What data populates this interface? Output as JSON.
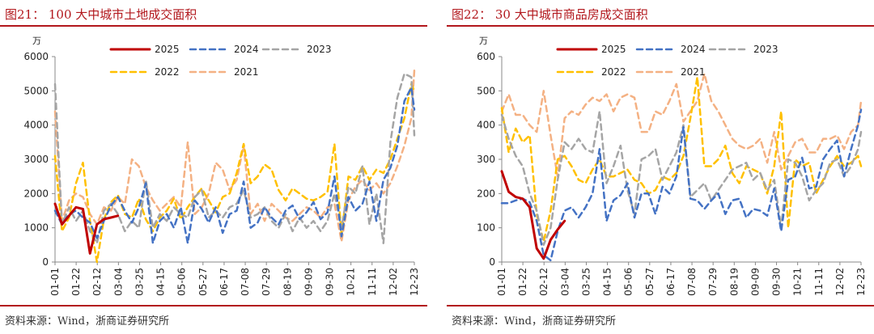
{
  "panels": [
    {
      "figure_title": "图21：  100 大中城市土地成交面积",
      "source": "资料来源：Wind，浙商证券研究所"
    },
    {
      "figure_title": "图22：  30 大中城市商品房成交面积",
      "source": "资料来源：Wind，浙商证券研究所"
    }
  ],
  "chart_data": [
    {
      "type": "line",
      "title": "",
      "ylabel": "万",
      "ylim": [
        0,
        6000
      ],
      "yticks": [
        0,
        1000,
        2000,
        3000,
        4000,
        5000,
        6000
      ],
      "x_tick_labels": [
        "01-01",
        "01-22",
        "02-12",
        "03-04",
        "03-25",
        "04-15",
        "05-06",
        "05-27",
        "06-17",
        "07-08",
        "07-29",
        "08-19",
        "09-09",
        "09-30",
        "10-21",
        "11-11",
        "12-02",
        "12-23"
      ],
      "x_range_days": [
        0,
        360
      ],
      "grid": false,
      "legend_position": "top",
      "series": [
        {
          "name": "2025",
          "color": "#c00000",
          "dash": "solid",
          "x": [
            0,
            7,
            14,
            21,
            28,
            35,
            42,
            49,
            56,
            63
          ],
          "values": [
            1700,
            1100,
            1350,
            1600,
            1550,
            250,
            1100,
            1250,
            1300,
            1350
          ]
        },
        {
          "name": "2024",
          "color": "#4472c4",
          "dash": "dash",
          "x": [
            0,
            7,
            14,
            21,
            28,
            35,
            42,
            49,
            56,
            63,
            70,
            77,
            84,
            91,
            98,
            105,
            112,
            119,
            126,
            133,
            140,
            147,
            154,
            161,
            168,
            175,
            182,
            189,
            196,
            203,
            210,
            217,
            224,
            231,
            238,
            245,
            252,
            259,
            266,
            273,
            280,
            287,
            294,
            301,
            308,
            315,
            322,
            329,
            336,
            343,
            350,
            357,
            360
          ],
          "values": [
            1500,
            1100,
            1400,
            1500,
            1300,
            1150,
            700,
            1200,
            1650,
            1900,
            1500,
            1150,
            1600,
            2300,
            550,
            1200,
            1400,
            1000,
            1600,
            550,
            1800,
            1550,
            1150,
            1600,
            850,
            1400,
            1500,
            2350,
            1000,
            1150,
            1600,
            1300,
            1100,
            1500,
            1650,
            1250,
            1450,
            1750,
            1250,
            1450,
            2500,
            750,
            1900,
            1500,
            1700,
            2350,
            1200,
            2400,
            2750,
            3400,
            4700,
            5100,
            4450
          ]
        },
        {
          "name": "2023",
          "color": "#a5a5a5",
          "dash": "dash",
          "x": [
            0,
            7,
            14,
            21,
            28,
            35,
            42,
            49,
            56,
            63,
            70,
            77,
            84,
            91,
            98,
            105,
            112,
            119,
            126,
            133,
            140,
            147,
            154,
            161,
            168,
            175,
            182,
            189,
            196,
            203,
            210,
            217,
            224,
            231,
            238,
            245,
            252,
            259,
            266,
            273,
            280,
            287,
            294,
            301,
            308,
            315,
            322,
            329,
            336,
            343,
            350,
            357,
            360
          ],
          "values": [
            5200,
            1100,
            1600,
            1200,
            1500,
            900,
            550,
            1500,
            1700,
            1400,
            900,
            1200,
            1000,
            2400,
            1000,
            1400,
            1200,
            1600,
            1400,
            1300,
            1900,
            2100,
            1300,
            1500,
            1300,
            1600,
            1700,
            2100,
            1300,
            1400,
            1600,
            1200,
            1000,
            1400,
            900,
            1300,
            1000,
            1200,
            900,
            1200,
            2000,
            1000,
            2200,
            2000,
            2800,
            1100,
            2000,
            550,
            3500,
            4800,
            5500,
            5400,
            3700
          ]
        },
        {
          "name": "2022",
          "color": "#ffc000",
          "dash": "dash",
          "x": [
            0,
            7,
            14,
            21,
            28,
            35,
            42,
            49,
            56,
            63,
            70,
            77,
            84,
            91,
            98,
            105,
            112,
            119,
            126,
            133,
            140,
            147,
            154,
            161,
            168,
            175,
            182,
            189,
            196,
            203,
            210,
            217,
            224,
            231,
            238,
            245,
            252,
            259,
            266,
            273,
            280,
            287,
            294,
            301,
            308,
            315,
            322,
            329,
            336,
            343,
            350,
            357,
            360
          ],
          "values": [
            3100,
            900,
            1300,
            2300,
            2900,
            1200,
            0,
            1250,
            1750,
            1950,
            1400,
            1300,
            1850,
            1250,
            900,
            1300,
            1500,
            1850,
            1250,
            1600,
            1900,
            2150,
            1800,
            1450,
            1900,
            2000,
            2600,
            3450,
            2300,
            2500,
            2850,
            2700,
            2100,
            1800,
            2150,
            2000,
            1850,
            1800,
            1900,
            2050,
            3450,
            800,
            2500,
            2400,
            2800,
            2400,
            2700,
            2600,
            3000,
            3600,
            4200,
            5200,
            5000
          ]
        },
        {
          "name": "2021",
          "color": "#f4b183",
          "dash": "dash",
          "x": [
            0,
            7,
            14,
            21,
            28,
            35,
            42,
            49,
            56,
            63,
            70,
            77,
            84,
            91,
            98,
            105,
            112,
            119,
            126,
            133,
            140,
            147,
            154,
            161,
            168,
            175,
            182,
            189,
            196,
            203,
            210,
            217,
            224,
            231,
            238,
            245,
            252,
            259,
            266,
            273,
            280,
            287,
            294,
            301,
            308,
            315,
            322,
            329,
            336,
            343,
            350,
            357,
            360
          ],
          "values": [
            4400,
            1200,
            1800,
            2000,
            1900,
            1400,
            1100,
            1600,
            1500,
            1900,
            1700,
            3000,
            2800,
            2200,
            1800,
            1500,
            1700,
            1900,
            1600,
            3500,
            1400,
            1600,
            2000,
            2900,
            2700,
            2100,
            2400,
            3400,
            1400,
            1700,
            1200,
            1700,
            1500,
            1300,
            1200,
            1400,
            1600,
            1500,
            1300,
            1600,
            1700,
            600,
            1800,
            2200,
            2400,
            2100,
            2300,
            2000,
            2300,
            2800,
            3400,
            4200,
            5600
          ]
        }
      ]
    },
    {
      "type": "line",
      "title": "",
      "ylabel": "万",
      "ylim": [
        0,
        600
      ],
      "yticks": [
        0,
        100,
        200,
        300,
        400,
        500,
        600
      ],
      "x_tick_labels": [
        "01-01",
        "01-22",
        "02-12",
        "03-04",
        "03-25",
        "04-15",
        "05-06",
        "05-27",
        "06-17",
        "07-08",
        "07-29",
        "08-19",
        "09-09",
        "09-30",
        "10-21",
        "11-11",
        "12-02",
        "12-23"
      ],
      "x_range_days": [
        0,
        360
      ],
      "grid": false,
      "legend_position": "top",
      "series": [
        {
          "name": "2025",
          "color": "#c00000",
          "dash": "solid",
          "x": [
            0,
            7,
            14,
            21,
            28,
            35,
            42,
            49,
            56,
            63
          ],
          "values": [
            265,
            205,
            190,
            185,
            160,
            40,
            10,
            65,
            95,
            120
          ]
        },
        {
          "name": "2024",
          "color": "#4472c4",
          "dash": "dash",
          "x": [
            0,
            7,
            14,
            21,
            28,
            35,
            42,
            49,
            56,
            63,
            70,
            77,
            84,
            91,
            98,
            105,
            112,
            119,
            126,
            133,
            140,
            147,
            154,
            161,
            168,
            175,
            182,
            189,
            196,
            203,
            210,
            217,
            224,
            231,
            238,
            245,
            252,
            259,
            266,
            273,
            280,
            287,
            294,
            301,
            308,
            315,
            322,
            329,
            336,
            343,
            350,
            357,
            360
          ],
          "values": [
            172,
            172,
            180,
            185,
            175,
            120,
            20,
            5,
            90,
            150,
            160,
            130,
            160,
            200,
            330,
            120,
            180,
            195,
            230,
            130,
            200,
            200,
            140,
            220,
            200,
            250,
            395,
            185,
            180,
            155,
            180,
            200,
            140,
            180,
            185,
            130,
            155,
            150,
            135,
            215,
            90,
            240,
            250,
            305,
            215,
            220,
            300,
            330,
            355,
            250,
            330,
            400,
            445
          ]
        },
        {
          "name": "2023",
          "color": "#a5a5a5",
          "dash": "dash",
          "x": [
            0,
            7,
            14,
            21,
            28,
            35,
            42,
            49,
            56,
            63,
            70,
            77,
            84,
            91,
            98,
            105,
            112,
            119,
            126,
            133,
            140,
            147,
            154,
            161,
            168,
            175,
            182,
            189,
            196,
            203,
            210,
            217,
            224,
            231,
            238,
            245,
            252,
            259,
            266,
            273,
            280,
            287,
            294,
            301,
            308,
            315,
            322,
            329,
            336,
            343,
            350,
            357,
            360
          ],
          "values": [
            430,
            360,
            310,
            280,
            200,
            150,
            50,
            100,
            240,
            350,
            330,
            360,
            330,
            320,
            440,
            230,
            280,
            340,
            210,
            140,
            300,
            310,
            330,
            240,
            280,
            320,
            400,
            190,
            210,
            230,
            180,
            210,
            240,
            270,
            280,
            290,
            240,
            260,
            210,
            240,
            100,
            300,
            290,
            250,
            180,
            210,
            230,
            290,
            300,
            250,
            280,
            330,
            380
          ]
        },
        {
          "name": "2022",
          "color": "#ffc000",
          "dash": "dash",
          "x": [
            0,
            7,
            14,
            21,
            28,
            35,
            42,
            49,
            56,
            63,
            70,
            77,
            84,
            91,
            98,
            105,
            112,
            119,
            126,
            133,
            140,
            147,
            154,
            161,
            168,
            175,
            182,
            189,
            196,
            203,
            210,
            217,
            224,
            231,
            238,
            245,
            252,
            259,
            266,
            273,
            280,
            287,
            294,
            301,
            308,
            315,
            322,
            329,
            336,
            343,
            350,
            357,
            360
          ],
          "values": [
            450,
            320,
            390,
            350,
            370,
            140,
            60,
            150,
            300,
            310,
            280,
            240,
            230,
            270,
            300,
            250,
            250,
            260,
            270,
            240,
            230,
            200,
            210,
            250,
            240,
            260,
            310,
            420,
            540,
            280,
            280,
            300,
            340,
            260,
            230,
            280,
            270,
            260,
            200,
            280,
            440,
            100,
            300,
            280,
            290,
            200,
            240,
            280,
            310,
            280,
            290,
            310,
            280
          ]
        },
        {
          "name": "2021",
          "color": "#f4b183",
          "dash": "dash",
          "x": [
            0,
            7,
            14,
            21,
            28,
            35,
            42,
            49,
            56,
            63,
            70,
            77,
            84,
            91,
            98,
            105,
            112,
            119,
            126,
            133,
            140,
            147,
            154,
            161,
            168,
            175,
            182,
            189,
            196,
            203,
            210,
            217,
            224,
            231,
            238,
            245,
            252,
            259,
            266,
            273,
            280,
            287,
            294,
            301,
            308,
            315,
            322,
            329,
            336,
            343,
            350,
            357,
            360
          ],
          "values": [
            440,
            490,
            430,
            430,
            400,
            380,
            500,
            370,
            250,
            420,
            440,
            430,
            460,
            480,
            470,
            490,
            440,
            480,
            490,
            480,
            380,
            380,
            440,
            430,
            470,
            520,
            410,
            440,
            470,
            550,
            470,
            440,
            400,
            360,
            340,
            330,
            340,
            360,
            290,
            380,
            270,
            310,
            350,
            360,
            320,
            320,
            360,
            360,
            370,
            330,
            380,
            400,
            470
          ]
        }
      ]
    }
  ]
}
